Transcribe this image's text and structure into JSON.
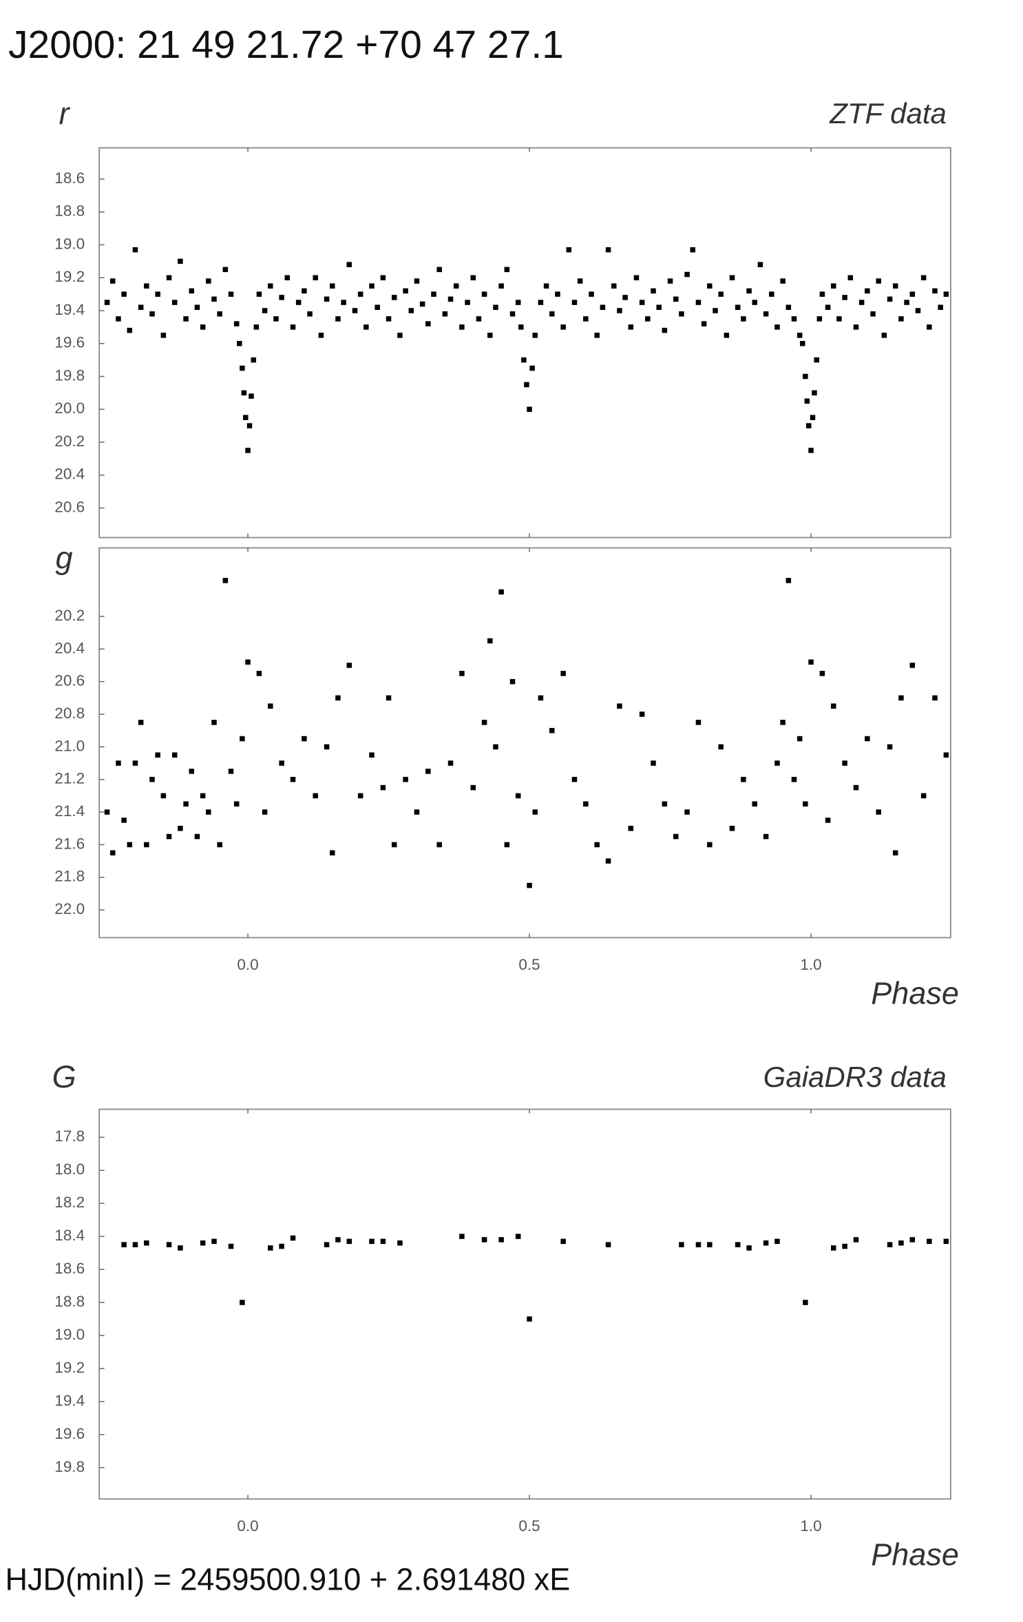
{
  "title": "J2000: 21 49 21.72 +70 47 27.1",
  "footer": "HJD(minI) = 2459500.910 + 2.691480 xE",
  "chart_data": [
    {
      "type": "scatter",
      "y_label": "r",
      "annotation": "ZTF data",
      "color": "#000000",
      "y_inverted": true,
      "xlim": [
        -0.264,
        1.248
      ],
      "xticks": [
        0,
        0.5,
        1
      ],
      "ylim": [
        18.41,
        20.78
      ],
      "yticks": [
        18.6,
        18.8,
        {
          "value": 19,
          "label": "19.0"
        },
        19.2,
        19.4,
        19.6,
        19.8,
        {
          "value": 20,
          "label": "20.0"
        },
        20.2,
        20.4,
        20.6
      ],
      "x": [
        -0.25,
        -0.24,
        -0.23,
        -0.22,
        -0.21,
        -0.2,
        -0.19,
        -0.18,
        -0.17,
        -0.16,
        -0.15,
        -0.14,
        -0.13,
        -0.12,
        -0.11,
        -0.1,
        -0.09,
        -0.08,
        -0.07,
        -0.06,
        -0.05,
        -0.04,
        -0.03,
        -0.02,
        -0.015,
        -0.01,
        -0.007,
        -0.004,
        0.0,
        0.003,
        0.006,
        0.01,
        0.015,
        0.02,
        0.03,
        0.04,
        0.05,
        0.06,
        0.07,
        0.08,
        0.09,
        0.1,
        0.11,
        0.12,
        0.13,
        0.14,
        0.15,
        0.16,
        0.17,
        0.18,
        0.19,
        0.2,
        0.21,
        0.22,
        0.23,
        0.24,
        0.25,
        0.26,
        0.27,
        0.28,
        0.29,
        0.3,
        0.31,
        0.32,
        0.33,
        0.34,
        0.35,
        0.36,
        0.37,
        0.38,
        0.39,
        0.4,
        0.41,
        0.42,
        0.43,
        0.44,
        0.45,
        0.46,
        0.47,
        0.48,
        0.485,
        0.49,
        0.495,
        0.5,
        0.505,
        0.51,
        0.52,
        0.53,
        0.54,
        0.55,
        0.56,
        0.57,
        0.58,
        0.59,
        0.6,
        0.61,
        0.62,
        0.63,
        0.64,
        0.65,
        0.66,
        0.67,
        0.68,
        0.69,
        0.7,
        0.71,
        0.72,
        0.73,
        0.74,
        0.75,
        0.76,
        0.77,
        0.78,
        0.79,
        0.8,
        0.81,
        0.82,
        0.83,
        0.84,
        0.85,
        0.86,
        0.87,
        0.88,
        0.89,
        0.9,
        0.91,
        0.92,
        0.93,
        0.94,
        0.95,
        0.96,
        0.97,
        0.98,
        0.985,
        0.99,
        0.993,
        0.996,
        1.0,
        1.003,
        1.006,
        1.01,
        1.015,
        1.02,
        1.03,
        1.04,
        1.05,
        1.06,
        1.07,
        1.08,
        1.09,
        1.1,
        1.11,
        1.12,
        1.13,
        1.14,
        1.15,
        1.16,
        1.17,
        1.18,
        1.19,
        1.2,
        1.21,
        1.22,
        1.23,
        1.24
      ],
      "values": [
        19.35,
        19.22,
        19.45,
        19.3,
        19.52,
        19.03,
        19.38,
        19.25,
        19.42,
        19.3,
        19.55,
        19.2,
        19.35,
        19.1,
        19.45,
        19.28,
        19.38,
        19.5,
        19.22,
        19.33,
        19.42,
        19.15,
        19.3,
        19.48,
        19.6,
        19.75,
        19.9,
        20.05,
        20.25,
        20.1,
        19.92,
        19.7,
        19.5,
        19.3,
        19.4,
        19.25,
        19.45,
        19.32,
        19.2,
        19.5,
        19.35,
        19.28,
        19.42,
        19.2,
        19.55,
        19.33,
        19.25,
        19.45,
        19.35,
        19.12,
        19.4,
        19.3,
        19.5,
        19.25,
        19.38,
        19.2,
        19.45,
        19.32,
        19.55,
        19.28,
        19.4,
        19.22,
        19.36,
        19.48,
        19.3,
        19.15,
        19.42,
        19.33,
        19.25,
        19.5,
        19.35,
        19.2,
        19.45,
        19.3,
        19.55,
        19.38,
        19.25,
        19.15,
        19.42,
        19.35,
        19.5,
        19.7,
        19.85,
        20.0,
        19.75,
        19.55,
        19.35,
        19.25,
        19.42,
        19.3,
        19.5,
        19.03,
        19.35,
        19.22,
        19.45,
        19.3,
        19.55,
        19.38,
        19.03,
        19.25,
        19.4,
        19.32,
        19.5,
        19.2,
        19.35,
        19.45,
        19.28,
        19.38,
        19.52,
        19.22,
        19.33,
        19.42,
        19.18,
        19.03,
        19.35,
        19.48,
        19.25,
        19.4,
        19.3,
        19.55,
        19.2,
        19.38,
        19.45,
        19.28,
        19.35,
        19.12,
        19.42,
        19.3,
        19.5,
        19.22,
        19.38,
        19.45,
        19.55,
        19.6,
        19.8,
        19.95,
        20.1,
        20.25,
        20.05,
        19.9,
        19.7,
        19.45,
        19.3,
        19.38,
        19.25,
        19.45,
        19.32,
        19.2,
        19.5,
        19.35,
        19.28,
        19.42,
        19.22,
        19.55,
        19.33,
        19.25,
        19.45,
        19.35,
        19.3,
        19.4,
        19.2,
        19.5,
        19.28,
        19.38,
        19.3
      ]
    },
    {
      "type": "scatter",
      "y_label": "g",
      "x_label": "Phase",
      "color": "#000000",
      "y_inverted": true,
      "xlim": [
        -0.264,
        1.248
      ],
      "xticks": [
        {
          "value": 0,
          "label": "0.0"
        },
        0.5,
        {
          "value": 1,
          "label": "1.0"
        }
      ],
      "ylim": [
        19.78,
        22.17
      ],
      "yticks": [
        20.2,
        20.4,
        20.6,
        20.8,
        {
          "value": 21,
          "label": "21.0"
        },
        21.2,
        21.4,
        21.6,
        21.8,
        {
          "value": 22,
          "label": "22.0"
        }
      ],
      "x": [
        -0.25,
        -0.24,
        -0.23,
        -0.22,
        -0.21,
        -0.2,
        -0.19,
        -0.18,
        -0.17,
        -0.16,
        -0.15,
        -0.14,
        -0.13,
        -0.12,
        -0.11,
        -0.1,
        -0.09,
        -0.08,
        -0.07,
        -0.06,
        -0.05,
        -0.04,
        -0.03,
        -0.02,
        -0.01,
        0.0,
        0.02,
        0.03,
        0.04,
        0.06,
        0.08,
        0.1,
        0.12,
        0.14,
        0.15,
        0.16,
        0.18,
        0.2,
        0.22,
        0.24,
        0.25,
        0.26,
        0.28,
        0.3,
        0.32,
        0.34,
        0.36,
        0.38,
        0.4,
        0.42,
        0.43,
        0.44,
        0.45,
        0.46,
        0.47,
        0.48,
        0.5,
        0.51,
        0.52,
        0.54,
        0.56,
        0.58,
        0.6,
        0.62,
        0.64,
        0.66,
        0.68,
        0.7,
        0.72,
        0.74,
        0.76,
        0.78,
        0.8,
        0.82,
        0.84,
        0.86,
        0.88,
        0.9,
        0.92,
        0.94,
        0.95,
        0.96,
        0.97,
        0.98,
        0.99,
        1.0,
        1.02,
        1.03,
        1.04,
        1.06,
        1.08,
        1.1,
        1.12,
        1.14,
        1.15,
        1.16,
        1.18,
        1.2,
        1.22,
        1.24
      ],
      "values": [
        21.4,
        21.65,
        21.1,
        21.45,
        21.6,
        21.1,
        20.85,
        21.6,
        21.2,
        21.05,
        21.3,
        21.55,
        21.05,
        21.5,
        21.35,
        21.15,
        21.55,
        21.3,
        21.4,
        20.85,
        21.6,
        19.98,
        21.15,
        21.35,
        20.95,
        20.48,
        20.55,
        21.4,
        20.75,
        21.1,
        21.2,
        20.95,
        21.3,
        21.0,
        21.65,
        20.7,
        20.5,
        21.3,
        21.05,
        21.25,
        20.7,
        21.6,
        21.2,
        21.4,
        21.15,
        21.6,
        21.1,
        20.55,
        21.25,
        20.85,
        20.35,
        21.0,
        20.05,
        21.6,
        20.6,
        21.3,
        21.85,
        21.4,
        20.7,
        20.9,
        20.55,
        21.2,
        21.35,
        21.6,
        21.7,
        20.75,
        21.5,
        20.8,
        21.1,
        21.35,
        21.55,
        21.4,
        20.85,
        21.6,
        21.0,
        21.5,
        21.2,
        21.35,
        21.55,
        21.1,
        20.85,
        19.98,
        21.2,
        20.95,
        21.35,
        20.48,
        20.55,
        21.45,
        20.75,
        21.1,
        21.25,
        20.95,
        21.4,
        21.0,
        21.65,
        20.7,
        20.5,
        21.3,
        20.7,
        21.05
      ]
    },
    {
      "type": "scatter",
      "y_label": "G",
      "annotation": "GaiaDR3 data",
      "x_label": "Phase",
      "color": "#000000",
      "y_inverted": true,
      "xlim": [
        -0.264,
        1.248
      ],
      "xticks": [
        {
          "value": 0,
          "label": "0.0"
        },
        0.5,
        {
          "value": 1,
          "label": "1.0"
        }
      ],
      "ylim": [
        17.63,
        19.99
      ],
      "yticks": [
        17.8,
        {
          "value": 18,
          "label": "18.0"
        },
        18.2,
        18.4,
        18.6,
        18.8,
        {
          "value": 19,
          "label": "19.0"
        },
        19.2,
        19.4,
        19.6,
        19.8
      ],
      "x": [
        -0.22,
        -0.2,
        -0.18,
        -0.14,
        -0.12,
        -0.08,
        -0.06,
        -0.03,
        -0.01,
        0.04,
        0.06,
        0.08,
        0.14,
        0.16,
        0.18,
        0.22,
        0.24,
        0.27,
        0.38,
        0.42,
        0.45,
        0.48,
        0.5,
        0.56,
        0.64,
        0.77,
        0.8,
        0.82,
        0.87,
        0.89,
        0.92,
        0.94,
        0.99,
        1.04,
        1.06,
        1.08,
        1.14,
        1.16,
        1.18,
        1.21,
        1.24
      ],
      "values": [
        18.45,
        18.45,
        18.44,
        18.45,
        18.47,
        18.44,
        18.43,
        18.46,
        18.8,
        18.47,
        18.46,
        18.41,
        18.45,
        18.42,
        18.43,
        18.43,
        18.43,
        18.44,
        18.4,
        18.42,
        18.42,
        18.4,
        18.9,
        18.43,
        18.45,
        18.45,
        18.45,
        18.45,
        18.45,
        18.47,
        18.44,
        18.43,
        18.8,
        18.47,
        18.46,
        18.42,
        18.45,
        18.44,
        18.42,
        18.43,
        18.43
      ]
    }
  ]
}
